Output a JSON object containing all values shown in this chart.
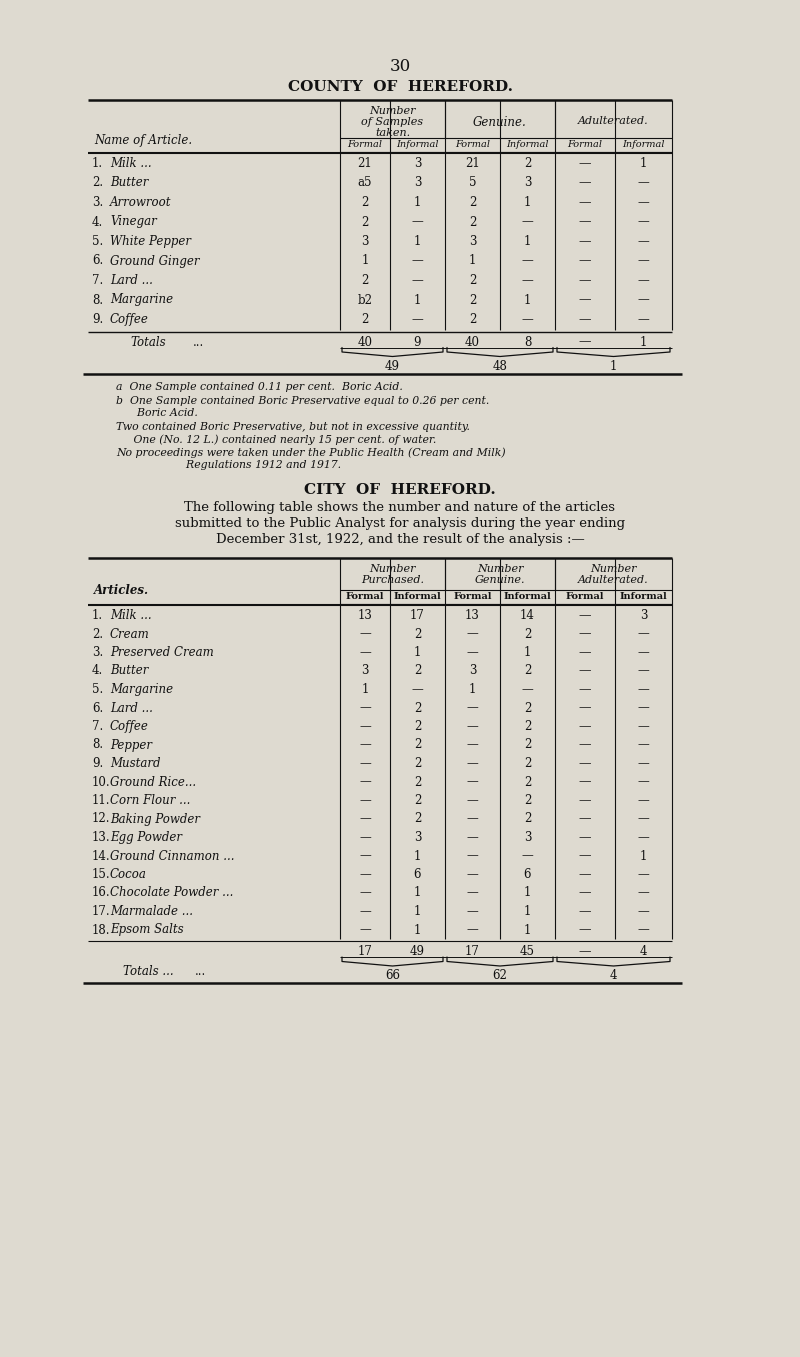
{
  "page_number": "30",
  "bg_color": "#dedad0",
  "section1_title": "COUNTY  OF  HEREFORD.",
  "section1_sub_headers": [
    "Formal",
    "Informal",
    "Formal",
    "Informal",
    "Formal",
    "Informal"
  ],
  "section1_row_label": "Name of Article.",
  "section1_rows": [
    {
      "num": "1.",
      "name": "Milk ...",
      "trail": "...   ...   ...",
      "f1": "21",
      "i1": "3",
      "f2": "21",
      "i2": "2",
      "f3": "—",
      "i3": "1"
    },
    {
      "num": "2.",
      "name": "Butter",
      "trail": "...   ...   ...",
      "f1": "a5",
      "i1": "3",
      "f2": "5",
      "i2": "3",
      "f3": "—",
      "i3": "—"
    },
    {
      "num": "3.",
      "name": "Arrowroot",
      "trail": "...   ...   ...",
      "f1": "2",
      "i1": "1",
      "f2": "2",
      "i2": "1",
      "f3": "—",
      "i3": "—"
    },
    {
      "num": "4.",
      "name": "Vinegar",
      "trail": "...   ...   ...",
      "f1": "2",
      "i1": "—",
      "f2": "2",
      "i2": "—",
      "f3": "—",
      "i3": "—"
    },
    {
      "num": "5.",
      "name": "White Pepper",
      "trail": "...   ...",
      "f1": "3",
      "i1": "1",
      "f2": "3",
      "i2": "1",
      "f3": "—",
      "i3": "—"
    },
    {
      "num": "6.",
      "name": "Ground Ginger",
      "trail": "...   ...",
      "f1": "1",
      "i1": "—",
      "f2": "1",
      "i2": "—",
      "f3": "—",
      "i3": "—"
    },
    {
      "num": "7.",
      "name": "Lard ...",
      "trail": "...   ...   ...",
      "f1": "2",
      "i1": "—",
      "f2": "2",
      "i2": "—",
      "f3": "—",
      "i3": "—"
    },
    {
      "num": "8.",
      "name": "Margarine",
      "trail": "...   ...",
      "f1": "b2",
      "i1": "1",
      "f2": "2",
      "i2": "1",
      "f3": "—",
      "i3": "—"
    },
    {
      "num": "9.",
      "name": "Coffee",
      "trail": "...   ...   ...",
      "f1": "2",
      "i1": "—",
      "f2": "2",
      "i2": "—",
      "f3": "—",
      "i3": "—"
    }
  ],
  "section1_totals": {
    "label": "Totals",
    "trail": "...",
    "f1": "40",
    "i1": "9",
    "f2": "40",
    "i2": "8",
    "f3": "—",
    "i3": "1"
  },
  "section1_brace_totals": [
    "49",
    "48",
    "1"
  ],
  "section1_footnotes": [
    "a  One Sample contained 0.11 per cent.  Boric Acid.",
    "b  One Sample contained Boric Preservative equal to 0.26 per cent.",
    "      Boric Acid.",
    "Two contained Boric Preservative, but not in excessive quantity.",
    "     One (No. 12 L.) contained nearly 15 per cent. of water.",
    "No proceedings were taken under the Public Health (Cream and Milk)",
    "                    Regulations 1912 and 1917."
  ],
  "section2_title": "CITY  OF  HEREFORD.",
  "section2_intro_lines": [
    "The following table shows the number and nature of the articles",
    "submitted to the Public Analyst for analysis during the year ending",
    "December 31st, 1922, and the result of the analysis :—"
  ],
  "section2_sub_headers": [
    "Formal",
    "Informal",
    "Formal",
    "Informal",
    "Formal",
    "Informal"
  ],
  "section2_row_label": "Articles.",
  "section2_rows": [
    {
      "num": "1.",
      "name": "Milk ...",
      "trail": "...   ...   ...",
      "f1": "13",
      "i1": "17",
      "f2": "13",
      "i2": "14",
      "f3": "—",
      "i3": "3"
    },
    {
      "num": "2.",
      "name": "Cream",
      "trail": "...   ...   ...",
      "f1": "—",
      "i1": "2",
      "f2": "—",
      "i2": "2",
      "f3": "—",
      "i3": "—"
    },
    {
      "num": "3.",
      "name": "Preserved Cream",
      "trail": "...",
      "f1": "—",
      "i1": "1",
      "f2": "—",
      "i2": "1",
      "f3": "—",
      "i3": "—"
    },
    {
      "num": "4.",
      "name": "Butter",
      "trail": "...   ...   ...",
      "f1": "3",
      "i1": "2",
      "f2": "3",
      "i2": "2",
      "f3": "—",
      "i3": "—"
    },
    {
      "num": "5.",
      "name": "Margarine",
      "trail": "...   ...",
      "f1": "1",
      "i1": "—",
      "f2": "1",
      "i2": "—",
      "f3": "—",
      "i3": "—"
    },
    {
      "num": "6.",
      "name": "Lard ...",
      "trail": "...   ...   ...",
      "f1": "—",
      "i1": "2",
      "f2": "—",
      "i2": "2",
      "f3": "—",
      "i3": "—"
    },
    {
      "num": "7.",
      "name": "Coffee",
      "trail": "...   ...   ...",
      "f1": "—",
      "i1": "2",
      "f2": "—",
      "i2": "2",
      "f3": "—",
      "i3": "—"
    },
    {
      "num": "8.",
      "name": "Pepper",
      "trail": "...   ...",
      "f1": "—",
      "i1": "2",
      "f2": "—",
      "i2": "2",
      "f3": "—",
      "i3": "—"
    },
    {
      "num": "9.",
      "name": "Mustard",
      "trail": "...   ...",
      "f1": "—",
      "i1": "2",
      "f2": "—",
      "i2": "2",
      "f3": "—",
      "i3": "—"
    },
    {
      "num": "10.",
      "name": "Ground Rice...",
      "trail": "...",
      "f1": "—",
      "i1": "2",
      "f2": "—",
      "i2": "2",
      "f3": "—",
      "i3": "—"
    },
    {
      "num": "11.",
      "name": "Corn Flour ...",
      "trail": "...",
      "f1": "—",
      "i1": "2",
      "f2": "—",
      "i2": "2",
      "f3": "—",
      "i3": "—"
    },
    {
      "num": "12.",
      "name": "Baking Powder",
      "trail": "...",
      "f1": "—",
      "i1": "2",
      "f2": "—",
      "i2": "2",
      "f3": "—",
      "i3": "—"
    },
    {
      "num": "13.",
      "name": "Egg Powder",
      "trail": "...",
      "f1": "—",
      "i1": "3",
      "f2": "—",
      "i2": "3",
      "f3": "—",
      "i3": "—"
    },
    {
      "num": "14.",
      "name": "Ground Cinnamon ...",
      "trail": "...",
      "f1": "—",
      "i1": "1",
      "f2": "—",
      "i2": "—",
      "f3": "—",
      "i3": "1"
    },
    {
      "num": "15.",
      "name": "Cocoa",
      "trail": "...   ...   ...",
      "f1": "—",
      "i1": "6",
      "f2": "—",
      "i2": "6",
      "f3": "—",
      "i3": "—"
    },
    {
      "num": "16.",
      "name": "Chocolate Powder ...",
      "trail": "...",
      "f1": "—",
      "i1": "1",
      "f2": "—",
      "i2": "1",
      "f3": "—",
      "i3": "—"
    },
    {
      "num": "17.",
      "name": "Marmalade ...",
      "trail": "...",
      "f1": "—",
      "i1": "1",
      "f2": "—",
      "i2": "1",
      "f3": "—",
      "i3": "—"
    },
    {
      "num": "18.",
      "name": "Epsom Salts",
      "trail": "...",
      "f1": "—",
      "i1": "1",
      "f2": "—",
      "i2": "1",
      "f3": "—",
      "i3": "—"
    }
  ],
  "section2_totals": {
    "label": "Totals ...",
    "trail": "...",
    "f1": "17",
    "i1": "49",
    "f2": "17",
    "i2": "45",
    "f3": "—",
    "i3": "4"
  },
  "section2_brace_totals": [
    "66",
    "62",
    "4"
  ]
}
